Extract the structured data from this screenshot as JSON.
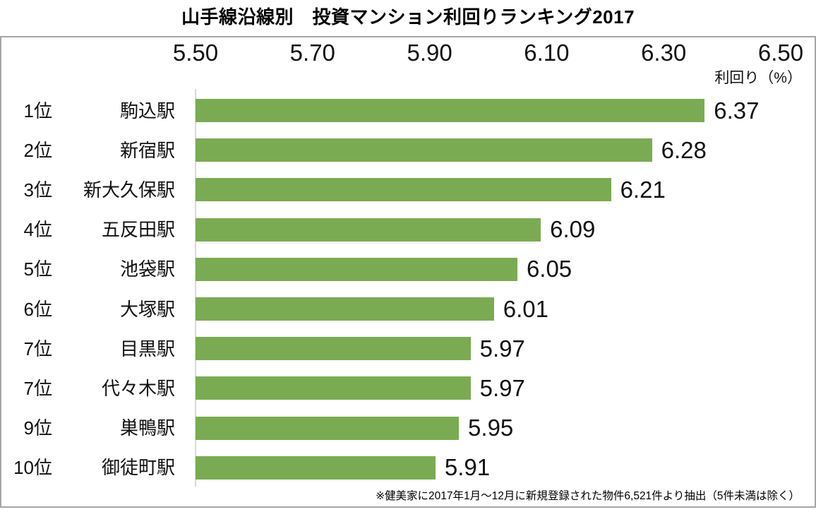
{
  "page": {
    "title": "山手線沿線別　投資マンション利回りランキング2017"
  },
  "chart_data": {
    "type": "bar",
    "orientation": "horizontal",
    "title": "山手線沿線別　投資マンション利回りランキング2017",
    "xlabel": "利回り（%）",
    "xlim": [
      5.5,
      6.5
    ],
    "x_ticks": [
      "5.50",
      "5.70",
      "5.90",
      "6.10",
      "6.30",
      "6.50"
    ],
    "x_tick_values": [
      5.5,
      5.7,
      5.9,
      6.1,
      6.3,
      6.5
    ],
    "grid": false,
    "legend": "none",
    "rows": [
      {
        "rank": "1位",
        "station": "駒込駅",
        "value": 6.37,
        "label": "6.37"
      },
      {
        "rank": "2位",
        "station": "新宿駅",
        "value": 6.28,
        "label": "6.28"
      },
      {
        "rank": "3位",
        "station": "新大久保駅",
        "value": 6.21,
        "label": "6.21"
      },
      {
        "rank": "4位",
        "station": "五反田駅",
        "value": 6.09,
        "label": "6.09"
      },
      {
        "rank": "5位",
        "station": "池袋駅",
        "value": 6.05,
        "label": "6.05"
      },
      {
        "rank": "6位",
        "station": "大塚駅",
        "value": 6.01,
        "label": "6.01"
      },
      {
        "rank": "7位",
        "station": "目黒駅",
        "value": 5.97,
        "label": "5.97"
      },
      {
        "rank": "7位",
        "station": "代々木駅",
        "value": 5.97,
        "label": "5.97"
      },
      {
        "rank": "9位",
        "station": "巣鴨駅",
        "value": 5.95,
        "label": "5.95"
      },
      {
        "rank": "10位",
        "station": "御徒町駅",
        "value": 5.91,
        "label": "5.91"
      }
    ],
    "footnote": "※健美家に2017年1月～12月に新規登録された物件6,521件より抽出（5件未満は除く）",
    "colors": {
      "bar": "#7aab53",
      "frame_border": "#a6a6a6",
      "axis_line": "#d9d9d9",
      "text": "#111111"
    }
  }
}
